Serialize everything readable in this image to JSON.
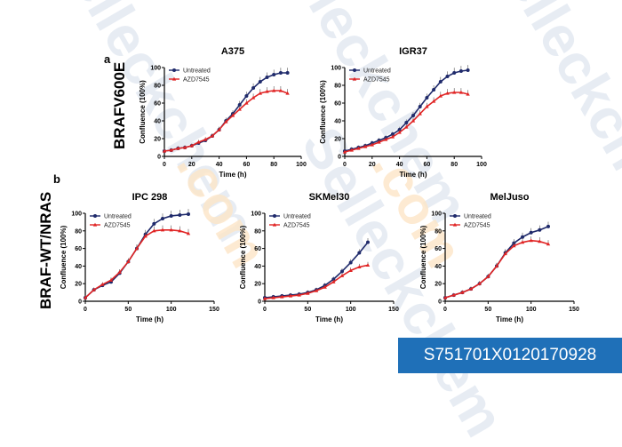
{
  "watermark": {
    "text": "Selleckchem",
    "suffix": ".com"
  },
  "panels": {
    "a": "a",
    "b": "b"
  },
  "row_labels": {
    "a": "BRAFV600E",
    "b": "BRAF-WT/NRAS"
  },
  "catalog_id": "S751701X0120170928",
  "colors": {
    "untreated": "#1f2a6b",
    "azd": "#e02424"
  },
  "chart_data": [
    {
      "type": "line",
      "title": "A375",
      "xlabel": "Time (h)",
      "ylabel": "Confluence (100%)",
      "xlim": [
        0,
        100
      ],
      "ylim": [
        0,
        100
      ],
      "xticks": [
        0,
        20,
        40,
        60,
        80,
        100
      ],
      "yticks": [
        0,
        20,
        40,
        60,
        80,
        100
      ],
      "legend": "top-left",
      "x": [
        0,
        5,
        10,
        15,
        20,
        25,
        30,
        35,
        40,
        45,
        50,
        55,
        60,
        65,
        70,
        75,
        80,
        85,
        90
      ],
      "series": [
        {
          "name": "Untreated",
          "values": [
            6,
            7,
            9,
            10,
            12,
            15,
            18,
            23,
            30,
            40,
            48,
            58,
            68,
            77,
            84,
            89,
            92,
            94,
            94
          ]
        },
        {
          "name": "AZD7545",
          "values": [
            6,
            7,
            9,
            10,
            12,
            16,
            19,
            23,
            30,
            39,
            46,
            53,
            60,
            66,
            71,
            73,
            74,
            74,
            71
          ]
        }
      ]
    },
    {
      "type": "line",
      "title": "IGR37",
      "xlabel": "Time (h)",
      "ylabel": "Confluence (100%)",
      "xlim": [
        0,
        100
      ],
      "ylim": [
        0,
        100
      ],
      "xticks": [
        0,
        20,
        40,
        60,
        80,
        100
      ],
      "yticks": [
        0,
        20,
        40,
        60,
        80,
        100
      ],
      "legend": "top-left",
      "x": [
        0,
        5,
        10,
        15,
        20,
        25,
        30,
        35,
        40,
        45,
        50,
        55,
        60,
        65,
        70,
        75,
        80,
        85,
        90
      ],
      "series": [
        {
          "name": "Untreated",
          "values": [
            6,
            8,
            10,
            12,
            15,
            18,
            21,
            25,
            30,
            38,
            46,
            56,
            66,
            75,
            84,
            90,
            94,
            96,
            97
          ]
        },
        {
          "name": "AZD7545",
          "values": [
            5,
            7,
            9,
            11,
            13,
            16,
            19,
            22,
            27,
            33,
            40,
            48,
            56,
            62,
            68,
            71,
            72,
            72,
            70
          ]
        }
      ]
    },
    {
      "type": "line",
      "title": "IPC 298",
      "xlabel": "Time (h)",
      "ylabel": "Confluence (100%)",
      "xlim": [
        0,
        150
      ],
      "ylim": [
        0,
        100
      ],
      "xticks": [
        0,
        50,
        100,
        150
      ],
      "yticks": [
        0,
        20,
        40,
        60,
        80,
        100
      ],
      "legend": "top-left",
      "x": [
        0,
        10,
        20,
        30,
        40,
        50,
        60,
        70,
        80,
        90,
        100,
        110,
        120
      ],
      "series": [
        {
          "name": "Untreated",
          "values": [
            4,
            13,
            18,
            22,
            32,
            45,
            60,
            76,
            88,
            94,
            97,
            98,
            99
          ]
        },
        {
          "name": "AZD7545",
          "values": [
            4,
            13,
            19,
            24,
            33,
            45,
            60,
            74,
            80,
            81,
            81,
            80,
            77
          ]
        }
      ]
    },
    {
      "type": "line",
      "title": "SKMel30",
      "xlabel": "Time (h)",
      "ylabel": "Confluence (100%)",
      "xlim": [
        0,
        150
      ],
      "ylim": [
        0,
        100
      ],
      "xticks": [
        0,
        50,
        100,
        150
      ],
      "yticks": [
        0,
        20,
        40,
        60,
        80,
        100
      ],
      "legend": "top-left",
      "x": [
        0,
        10,
        20,
        30,
        40,
        50,
        60,
        70,
        80,
        90,
        100,
        110,
        120
      ],
      "series": [
        {
          "name": "Untreated",
          "values": [
            4,
            5,
            6,
            7,
            8,
            10,
            13,
            18,
            25,
            34,
            44,
            55,
            67
          ]
        },
        {
          "name": "AZD7545",
          "values": [
            3,
            4,
            5,
            6,
            7,
            9,
            12,
            16,
            22,
            29,
            35,
            39,
            41
          ]
        }
      ]
    },
    {
      "type": "line",
      "title": "MelJuso",
      "xlabel": "Time (h)",
      "ylabel": "Confluence (100%)",
      "xlim": [
        0,
        150
      ],
      "ylim": [
        0,
        100
      ],
      "xticks": [
        0,
        50,
        100,
        150
      ],
      "yticks": [
        0,
        20,
        40,
        60,
        80,
        100
      ],
      "legend": "top-left",
      "x": [
        0,
        10,
        20,
        30,
        40,
        50,
        60,
        70,
        80,
        90,
        100,
        110,
        120
      ],
      "series": [
        {
          "name": "Untreated",
          "values": [
            4,
            7,
            10,
            14,
            20,
            28,
            40,
            55,
            66,
            73,
            78,
            81,
            85
          ]
        },
        {
          "name": "AZD7545",
          "values": [
            4,
            7,
            10,
            14,
            20,
            28,
            40,
            54,
            63,
            67,
            69,
            68,
            65
          ]
        }
      ]
    }
  ]
}
